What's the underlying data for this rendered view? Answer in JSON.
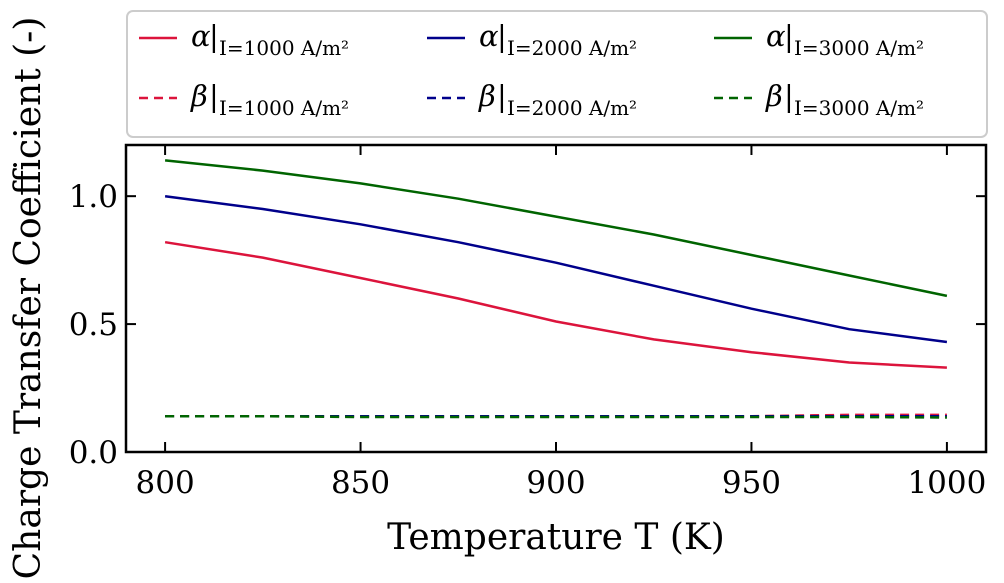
{
  "chart_data": {
    "type": "line",
    "xlabel": "Temperature T (K)",
    "ylabel": "Charge Transfer Coefficient (-)",
    "xlim": [
      790,
      1010
    ],
    "ylim": [
      0.0,
      1.2
    ],
    "xticks": [
      800,
      850,
      900,
      950,
      1000
    ],
    "xtick_labels": [
      "800",
      "850",
      "900",
      "950",
      "1000"
    ],
    "yticks": [
      0.0,
      0.5,
      1.0
    ],
    "ytick_labels": [
      "0.0",
      "0.5",
      "1.0"
    ],
    "grid": false,
    "legend_position": "top",
    "x": [
      800,
      825,
      850,
      875,
      900,
      925,
      950,
      975,
      1000
    ],
    "series": [
      {
        "name": "α|I=1000 A/m²",
        "symbol": "α",
        "subscript": "I=1000 A/m²",
        "color": "#dc143c",
        "style": "solid",
        "values": [
          0.82,
          0.76,
          0.68,
          0.6,
          0.51,
          0.44,
          0.39,
          0.35,
          0.33
        ]
      },
      {
        "name": "α|I=2000 A/m²",
        "symbol": "α",
        "subscript": "I=2000 A/m²",
        "color": "#00008b",
        "style": "solid",
        "values": [
          1.0,
          0.95,
          0.89,
          0.82,
          0.74,
          0.65,
          0.56,
          0.48,
          0.43
        ]
      },
      {
        "name": "α|I=3000 A/m²",
        "symbol": "α",
        "subscript": "I=3000 A/m²",
        "color": "#006400",
        "style": "solid",
        "values": [
          1.14,
          1.1,
          1.05,
          0.99,
          0.92,
          0.85,
          0.77,
          0.69,
          0.61
        ]
      },
      {
        "name": "β|I=1000 A/m²",
        "symbol": "β",
        "subscript": "I=1000 A/m²",
        "color": "#dc143c",
        "style": "dashed",
        "values": [
          0.14,
          0.14,
          0.14,
          0.14,
          0.14,
          0.14,
          0.14,
          0.145,
          0.145
        ]
      },
      {
        "name": "β|I=2000 A/m²",
        "symbol": "β",
        "subscript": "I=2000 A/m²",
        "color": "#00008b",
        "style": "dashed",
        "values": [
          0.14,
          0.14,
          0.14,
          0.14,
          0.14,
          0.14,
          0.14,
          0.14,
          0.14
        ]
      },
      {
        "name": "β|I=3000 A/m²",
        "symbol": "β",
        "subscript": "I=3000 A/m²",
        "color": "#006400",
        "style": "dashed",
        "values": [
          0.14,
          0.14,
          0.137,
          0.137,
          0.137,
          0.137,
          0.137,
          0.137,
          0.135
        ]
      }
    ]
  }
}
